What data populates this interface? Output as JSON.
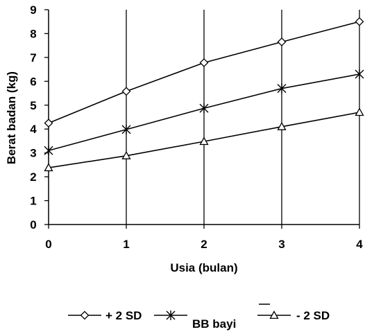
{
  "chart_data": {
    "type": "line",
    "xlabel": "Usia (bulan)",
    "ylabel": "Berat badan (kg)",
    "x": [
      0,
      1,
      2,
      3,
      4
    ],
    "xlim": [
      0,
      4
    ],
    "ylim": [
      0,
      9
    ],
    "y_ticks": [
      "0",
      "1",
      "2",
      "3",
      "4",
      "5",
      "6",
      "7",
      "8",
      "9"
    ],
    "x_ticks": [
      "0",
      "1",
      "2",
      "3",
      "4"
    ],
    "grid": "vertical",
    "legend_position": "bottom",
    "series": [
      {
        "name": "+ 2 SD",
        "marker": "diamond",
        "values": [
          4.25,
          5.58,
          6.78,
          7.65,
          8.5
        ]
      },
      {
        "name": "BB bayi",
        "marker": "star",
        "values": [
          3.1,
          3.98,
          4.87,
          5.7,
          6.3
        ]
      },
      {
        "name": "- 2 SD",
        "marker": "triangle",
        "values": [
          2.38,
          2.88,
          3.48,
          4.1,
          4.7
        ]
      }
    ],
    "colors": {
      "line": "#000000",
      "background": "#ffffff"
    }
  }
}
